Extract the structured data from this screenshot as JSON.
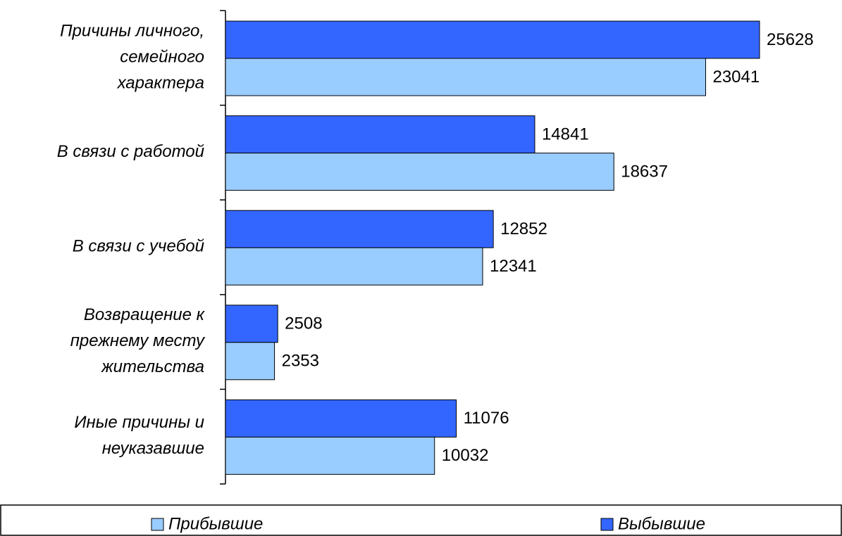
{
  "chart_data": {
    "type": "bar",
    "orientation": "horizontal",
    "categories": [
      "Причины личного,\nсемейного\nхарактера",
      "В связи с работой",
      "В связи с учебой",
      "Возвращение к\nпрежнему месту\nжительства",
      "Иные причины и\nнеуказавшие"
    ],
    "series": [
      {
        "name": "Прибывшие",
        "color": "#99ccff",
        "values": [
          23041,
          18637,
          12341,
          2353,
          10032
        ]
      },
      {
        "name": "Выбывшие",
        "color": "#3366ff",
        "values": [
          25628,
          14841,
          12852,
          2508,
          11076
        ]
      }
    ],
    "xlim": [
      0,
      27000
    ],
    "legend": "bottom"
  }
}
